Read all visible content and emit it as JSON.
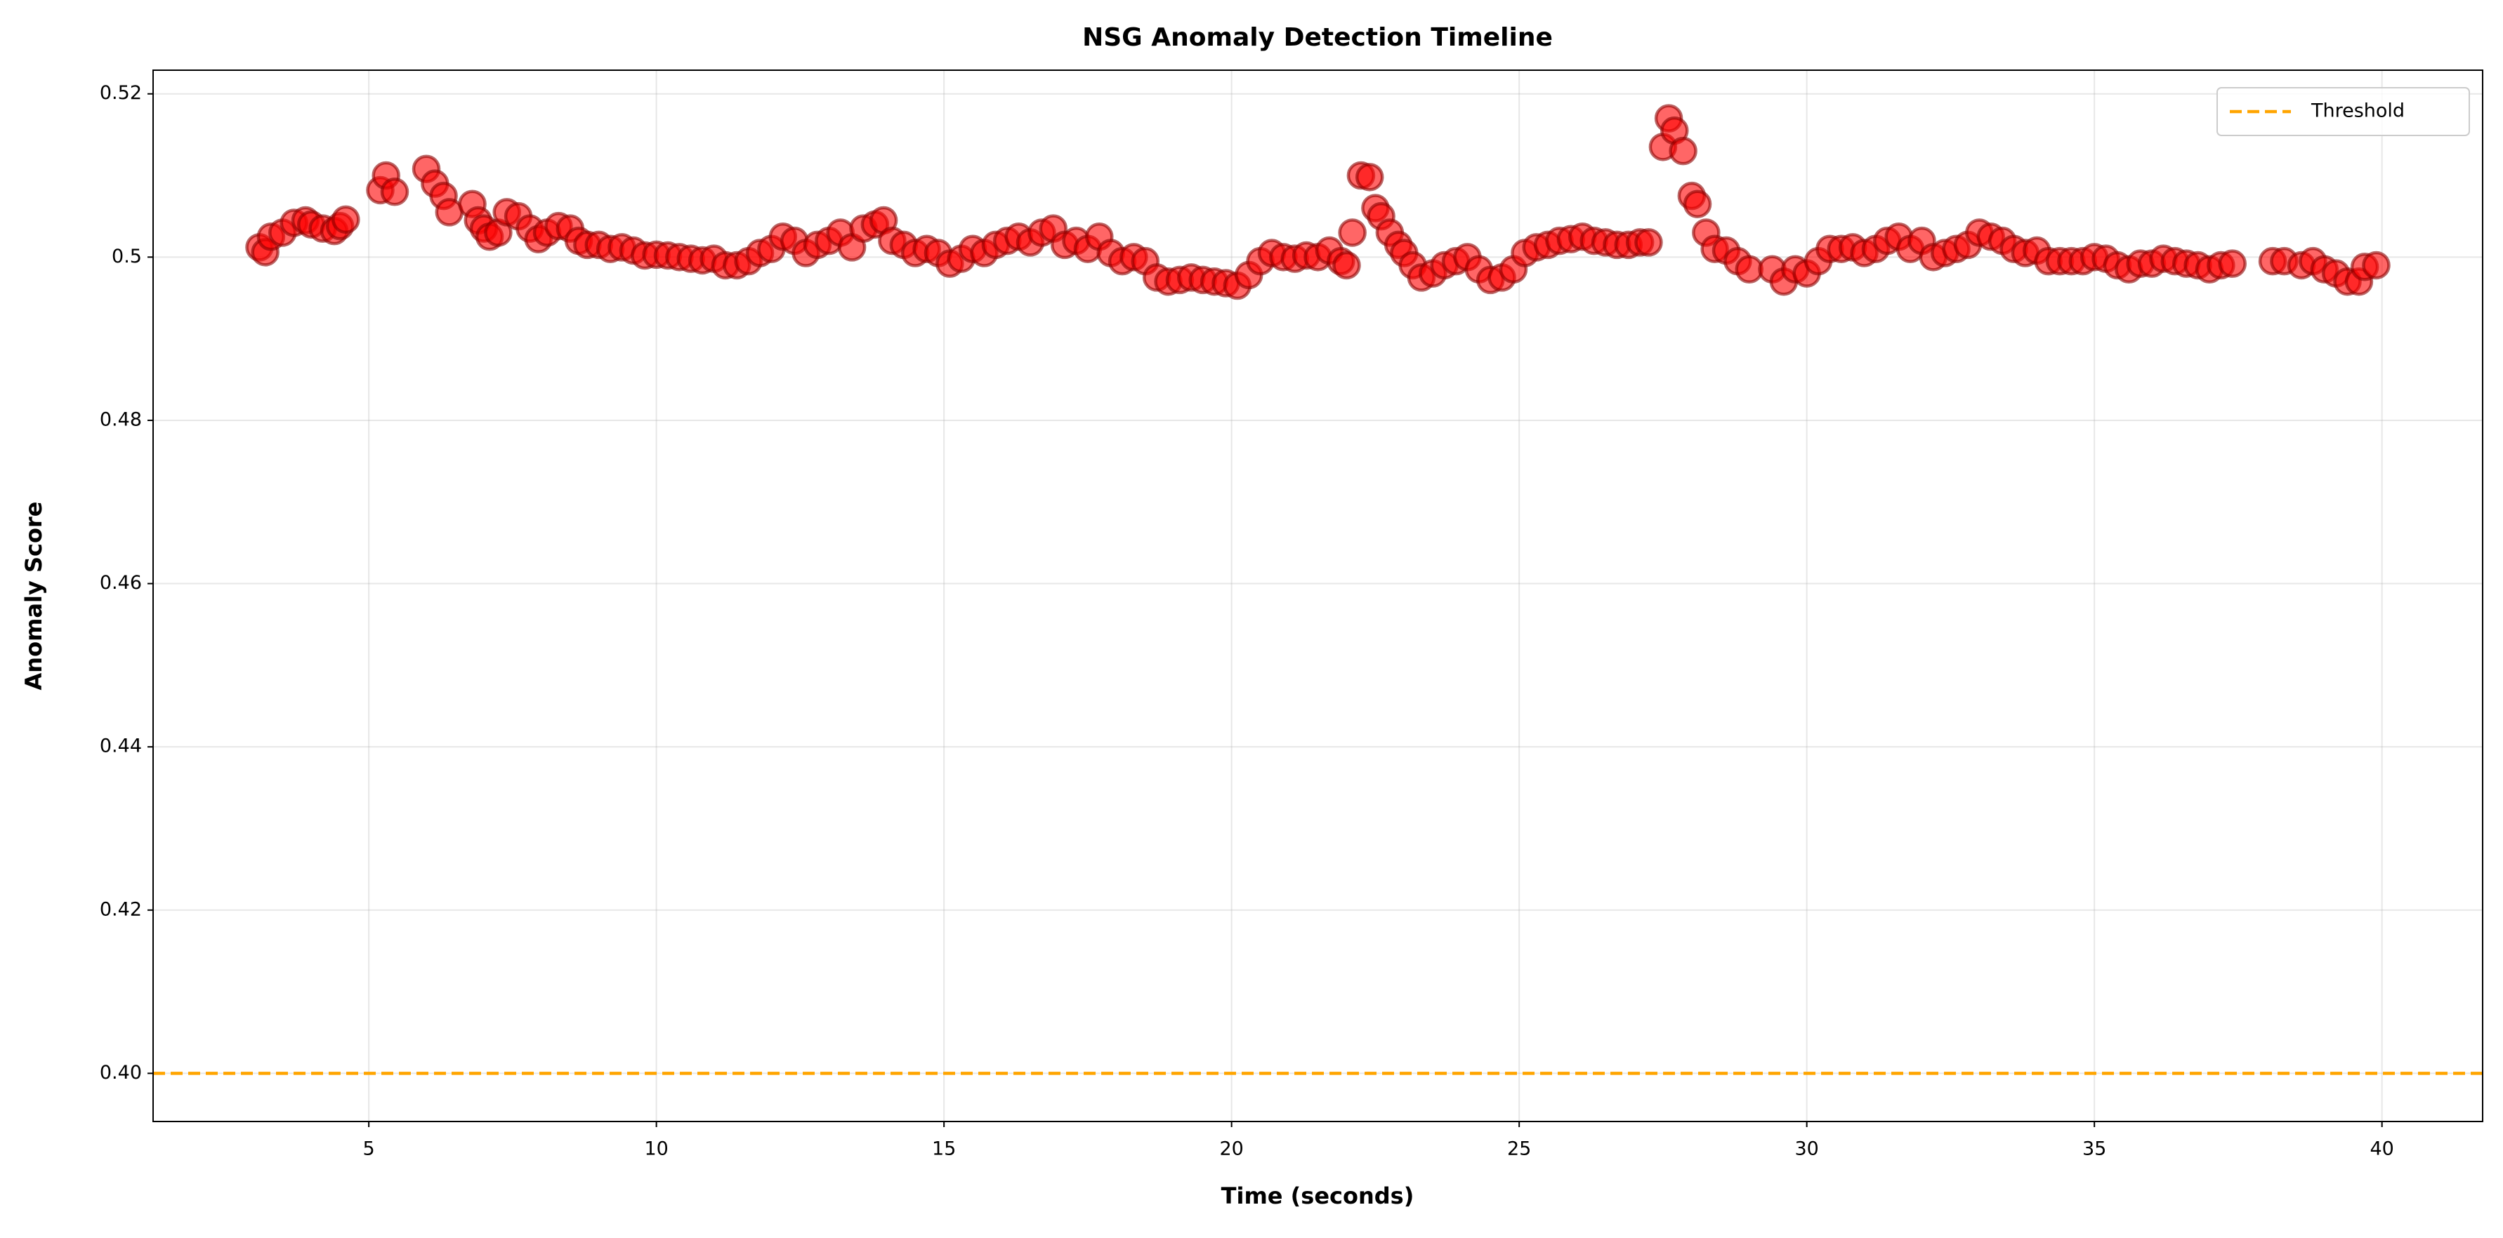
{
  "chart_data": {
    "type": "scatter",
    "title": "NSG Anomaly Detection Timeline",
    "x_label": "Time (seconds)",
    "y_label": "Anomaly Score",
    "x": [
      3.1,
      3.2,
      3.3,
      3.5,
      3.7,
      3.9,
      4.0,
      4.2,
      4.4,
      4.5,
      4.6,
      5.2,
      5.3,
      5.45,
      6.0,
      6.15,
      6.3,
      6.4,
      6.8,
      6.9,
      7.0,
      7.1,
      7.25,
      7.4,
      7.6,
      7.8,
      7.95,
      8.1,
      8.3,
      8.5,
      8.65,
      8.8,
      9.0,
      9.2,
      9.4,
      9.6,
      9.8,
      10.0,
      10.2,
      10.4,
      10.6,
      10.8,
      11.0,
      11.2,
      11.4,
      11.6,
      11.8,
      12.0,
      12.2,
      12.4,
      12.6,
      12.8,
      13.0,
      13.2,
      13.4,
      13.6,
      13.8,
      13.95,
      14.1,
      14.3,
      14.5,
      14.7,
      14.9,
      15.1,
      15.3,
      15.5,
      15.7,
      15.9,
      16.1,
      16.3,
      16.5,
      16.7,
      16.9,
      17.1,
      17.3,
      17.5,
      17.7,
      17.9,
      18.1,
      18.3,
      18.5,
      18.7,
      18.9,
      19.1,
      19.3,
      19.5,
      19.7,
      19.9,
      20.1,
      20.3,
      20.5,
      20.7,
      20.9,
      21.1,
      21.3,
      21.5,
      21.7,
      21.9,
      22.0,
      22.1,
      22.25,
      22.4,
      22.5,
      22.6,
      22.75,
      22.9,
      23.0,
      23.15,
      23.3,
      23.5,
      23.7,
      23.9,
      24.1,
      24.3,
      24.5,
      24.7,
      24.9,
      25.1,
      25.3,
      25.5,
      25.7,
      25.9,
      26.1,
      26.3,
      26.5,
      26.7,
      26.9,
      27.1,
      27.25,
      27.5,
      27.6,
      27.7,
      27.85,
      28.0,
      28.1,
      28.25,
      28.4,
      28.6,
      28.8,
      29.0,
      29.4,
      29.6,
      29.8,
      30.0,
      30.2,
      30.4,
      30.6,
      30.8,
      31.0,
      31.2,
      31.4,
      31.6,
      31.8,
      32.0,
      32.2,
      32.4,
      32.6,
      32.8,
      33.0,
      33.2,
      33.4,
      33.6,
      33.8,
      34.0,
      34.2,
      34.4,
      34.6,
      34.8,
      35.0,
      35.2,
      35.4,
      35.6,
      35.8,
      36.0,
      36.2,
      36.4,
      36.6,
      36.8,
      37.0,
      37.2,
      37.4,
      38.1,
      38.3,
      38.6,
      38.8,
      39.0,
      39.2,
      39.4,
      39.6,
      39.7,
      39.9
    ],
    "values": [
      0.5012,
      0.5006,
      0.5025,
      0.503,
      0.5042,
      0.5045,
      0.504,
      0.5035,
      0.5032,
      0.5038,
      0.5046,
      0.5082,
      0.51,
      0.508,
      0.5108,
      0.509,
      0.5075,
      0.5055,
      0.5065,
      0.5045,
      0.5035,
      0.5025,
      0.503,
      0.5055,
      0.505,
      0.5035,
      0.5022,
      0.503,
      0.5038,
      0.5035,
      0.502,
      0.5015,
      0.5015,
      0.501,
      0.5012,
      0.5008,
      0.5002,
      0.5003,
      0.5002,
      0.5,
      0.4998,
      0.4996,
      0.4998,
      0.499,
      0.499,
      0.4995,
      0.5005,
      0.501,
      0.5025,
      0.502,
      0.5005,
      0.5015,
      0.502,
      0.503,
      0.5012,
      0.5035,
      0.504,
      0.5045,
      0.502,
      0.5015,
      0.5005,
      0.501,
      0.5005,
      0.4992,
      0.4998,
      0.501,
      0.5005,
      0.5015,
      0.502,
      0.5025,
      0.5018,
      0.503,
      0.5035,
      0.5015,
      0.502,
      0.501,
      0.5025,
      0.5005,
      0.4995,
      0.5,
      0.4995,
      0.4975,
      0.497,
      0.4972,
      0.4975,
      0.4972,
      0.497,
      0.4968,
      0.4965,
      0.4978,
      0.4995,
      0.5005,
      0.5,
      0.4998,
      0.5002,
      0.5,
      0.5008,
      0.4995,
      0.499,
      0.503,
      0.51,
      0.5098,
      0.506,
      0.505,
      0.503,
      0.5015,
      0.5005,
      0.499,
      0.4975,
      0.498,
      0.499,
      0.4995,
      0.5,
      0.4985,
      0.4972,
      0.4975,
      0.4985,
      0.5005,
      0.5012,
      0.5015,
      0.502,
      0.5022,
      0.5025,
      0.502,
      0.5018,
      0.5015,
      0.5015,
      0.5018,
      0.5018,
      0.5135,
      0.517,
      0.5155,
      0.513,
      0.5075,
      0.5065,
      0.503,
      0.501,
      0.5008,
      0.4995,
      0.4985,
      0.4985,
      0.497,
      0.4985,
      0.498,
      0.4995,
      0.501,
      0.501,
      0.5012,
      0.5005,
      0.501,
      0.502,
      0.5025,
      0.501,
      0.502,
      0.5,
      0.5005,
      0.501,
      0.5015,
      0.503,
      0.5025,
      0.502,
      0.501,
      0.5005,
      0.5008,
      0.4995,
      0.4995,
      0.4995,
      0.4995,
      0.5,
      0.4998,
      0.499,
      0.4985,
      0.4992,
      0.4992,
      0.4998,
      0.4995,
      0.4992,
      0.499,
      0.4985,
      0.499,
      0.4992,
      0.4995,
      0.4995,
      0.499,
      0.4995,
      0.4985,
      0.498,
      0.497,
      0.497,
      0.4988,
      0.499
    ],
    "color": "#ff0000",
    "edge_color": "#8b0000",
    "threshold": {
      "name": "Threshold",
      "value": 0.4,
      "color": "#ffa500"
    },
    "xlim": [
      1.25,
      41.75
    ],
    "ylim": [
      0.3941,
      0.5229
    ],
    "xticks": [
      5,
      10,
      15,
      20,
      25,
      30,
      35,
      40
    ],
    "yticks": [
      {
        "value": 0.4,
        "label": "0.40"
      },
      0.42,
      0.44,
      0.46,
      0.48,
      0.5,
      0.52
    ],
    "grid": true,
    "legend": "upper right"
  }
}
